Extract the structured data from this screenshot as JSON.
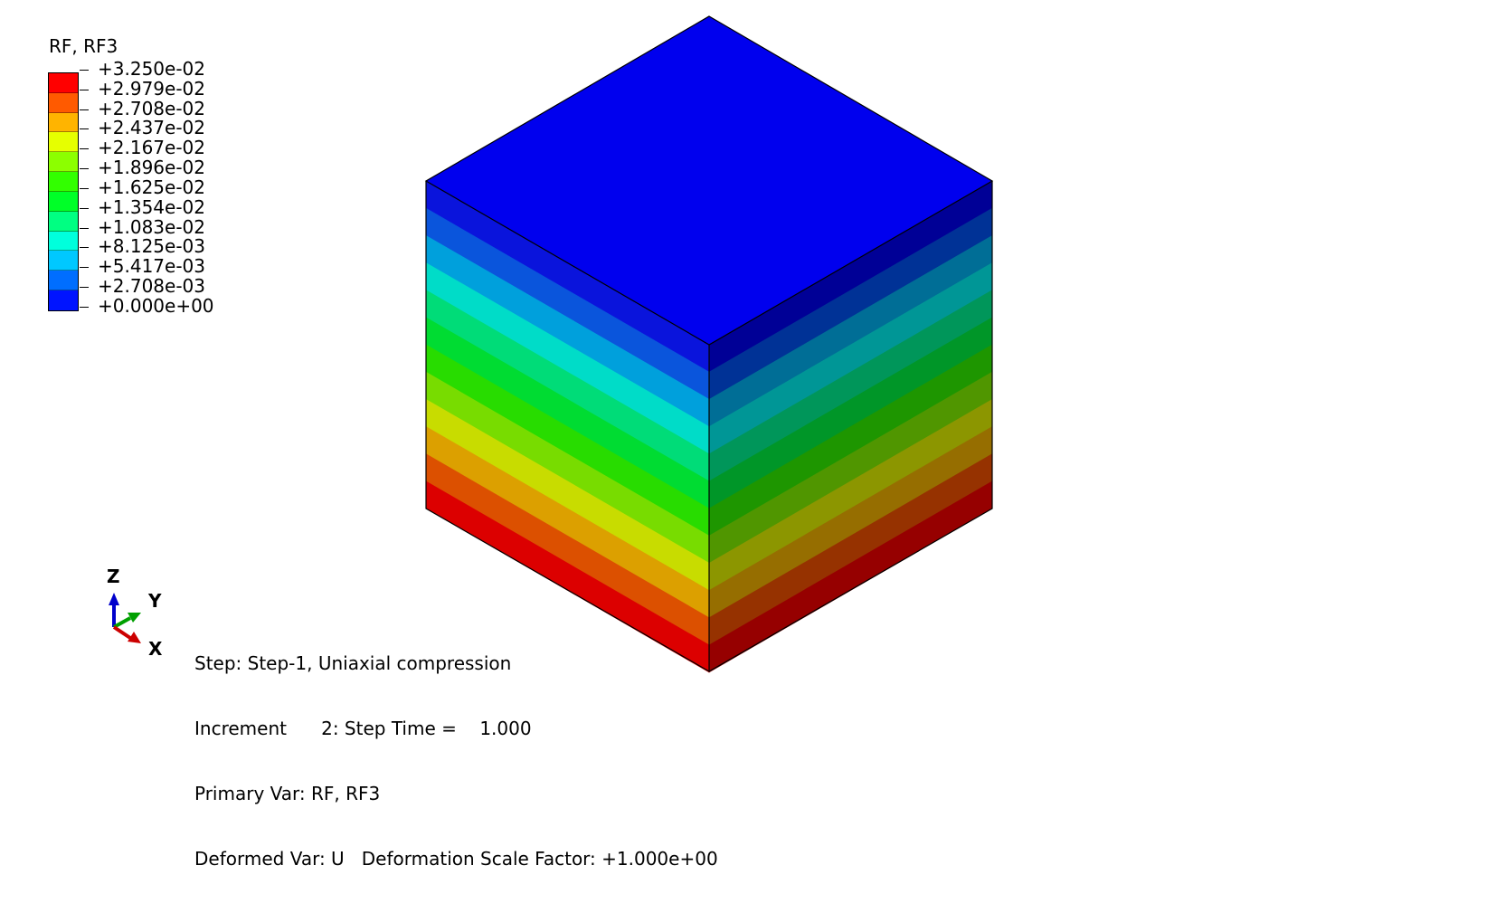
{
  "legend": {
    "title": "RF, RF3",
    "values": [
      "+3.250e-02",
      "+2.979e-02",
      "+2.708e-02",
      "+2.437e-02",
      "+2.167e-02",
      "+1.896e-02",
      "+1.625e-02",
      "+1.354e-02",
      "+1.083e-02",
      "+8.125e-03",
      "+5.417e-03",
      "+2.708e-03",
      "+0.000e+00"
    ],
    "colors": [
      "#ff0000",
      "#ff5a00",
      "#ffb400",
      "#e6ff00",
      "#8cff00",
      "#32ff00",
      "#00ff28",
      "#00ff82",
      "#00ffdc",
      "#00c8ff",
      "#006eff",
      "#0014ff"
    ]
  },
  "triad": {
    "z_label": "Z",
    "y_label": "Y",
    "x_label": "X",
    "colors": {
      "z": "#0000cc",
      "y": "#00a000",
      "x": "#cc0000"
    }
  },
  "info": {
    "step_line": "Step: Step-1, Uniaxial compression",
    "increment_line": "Increment      2: Step Time =    1.000",
    "primary_var_line": "Primary Var: RF, RF3",
    "deformed_var_line": "Deformed Var: U   Deformation Scale Factor: +1.000e+00"
  },
  "model": {
    "top_color": "#0000ee",
    "left_face_bands": [
      "#0a14dc",
      "#0a55dc",
      "#00a0dc",
      "#00dcc8",
      "#00dc78",
      "#00dc32",
      "#28dc00",
      "#78dc00",
      "#c8dc00",
      "#dca000",
      "#dc5000",
      "#dc0000"
    ],
    "right_face_bands": [
      "#000096",
      "#003296",
      "#006e96",
      "#009696",
      "#00965a",
      "#009628",
      "#1e9600",
      "#509600",
      "#8c9600",
      "#966e00",
      "#963200",
      "#960000"
    ]
  }
}
